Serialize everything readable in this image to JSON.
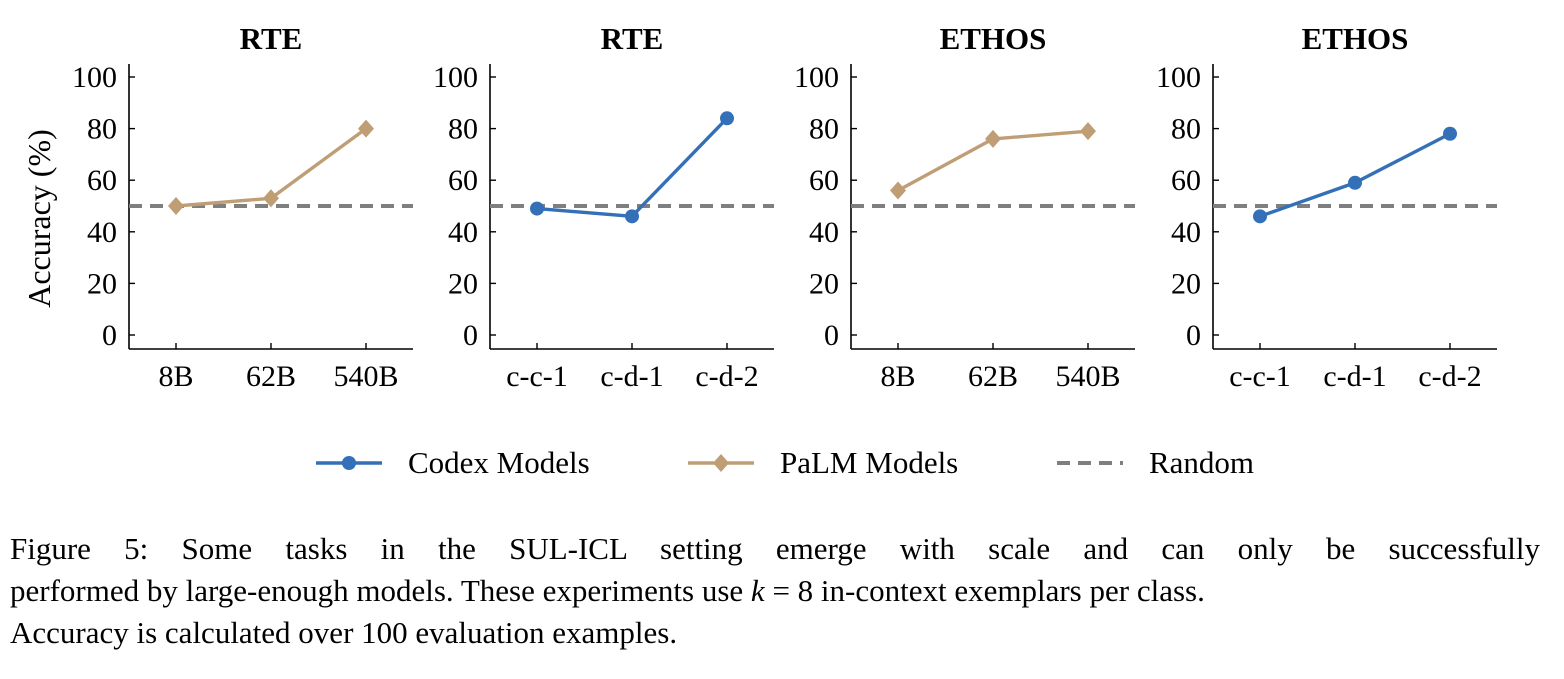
{
  "chart_data": [
    {
      "type": "line",
      "title": "RTE",
      "ylabel": "Accuracy (%)",
      "ylim": [
        0,
        100
      ],
      "yticks": [
        0,
        20,
        40,
        60,
        80,
        100
      ],
      "categories": [
        "8B",
        "62B",
        "540B"
      ],
      "series": [
        {
          "name": "PaLM Models",
          "values": [
            50,
            53,
            80
          ]
        }
      ],
      "baseline": {
        "name": "Random",
        "value": 50
      }
    },
    {
      "type": "line",
      "title": "RTE",
      "ylabel": "",
      "ylim": [
        0,
        100
      ],
      "yticks": [
        0,
        20,
        40,
        60,
        80,
        100
      ],
      "categories": [
        "c-c-1",
        "c-d-1",
        "c-d-2"
      ],
      "series": [
        {
          "name": "Codex Models",
          "values": [
            49,
            46,
            84
          ]
        }
      ],
      "baseline": {
        "name": "Random",
        "value": 50
      }
    },
    {
      "type": "line",
      "title": "ETHOS",
      "ylabel": "",
      "ylim": [
        0,
        100
      ],
      "yticks": [
        0,
        20,
        40,
        60,
        80,
        100
      ],
      "categories": [
        "8B",
        "62B",
        "540B"
      ],
      "series": [
        {
          "name": "PaLM Models",
          "values": [
            56,
            76,
            79
          ]
        }
      ],
      "baseline": {
        "name": "Random",
        "value": 50
      }
    },
    {
      "type": "line",
      "title": "ETHOS",
      "ylabel": "",
      "ylim": [
        0,
        100
      ],
      "yticks": [
        0,
        20,
        40,
        60,
        80,
        100
      ],
      "categories": [
        "c-c-1",
        "c-d-1",
        "c-d-2"
      ],
      "series": [
        {
          "name": "Codex Models",
          "values": [
            46,
            59,
            78
          ]
        }
      ],
      "baseline": {
        "name": "Random",
        "value": 50
      }
    }
  ],
  "legend": [
    {
      "label": "Codex Models",
      "marker": "circle",
      "color": "#3370b7"
    },
    {
      "label": "PaLM Models",
      "marker": "diamond",
      "color": "#bf9e76"
    },
    {
      "label": "Random",
      "marker": "dashed",
      "color": "#7f7f7f"
    }
  ],
  "colors": {
    "codex": "#3370b7",
    "palm": "#bf9e76",
    "random": "#7f7f7f"
  },
  "caption": {
    "line1": "Figure 5:  Some tasks in the SUL-ICL setting emerge with scale and can only be successfully",
    "line2_before": "performed by large-enough models. These experiments use ",
    "line2_math": "k",
    "line2_eq": " = 8",
    "line2_after": " in-context exemplars per class.",
    "line3": "Accuracy is calculated over 100 evaluation examples."
  }
}
